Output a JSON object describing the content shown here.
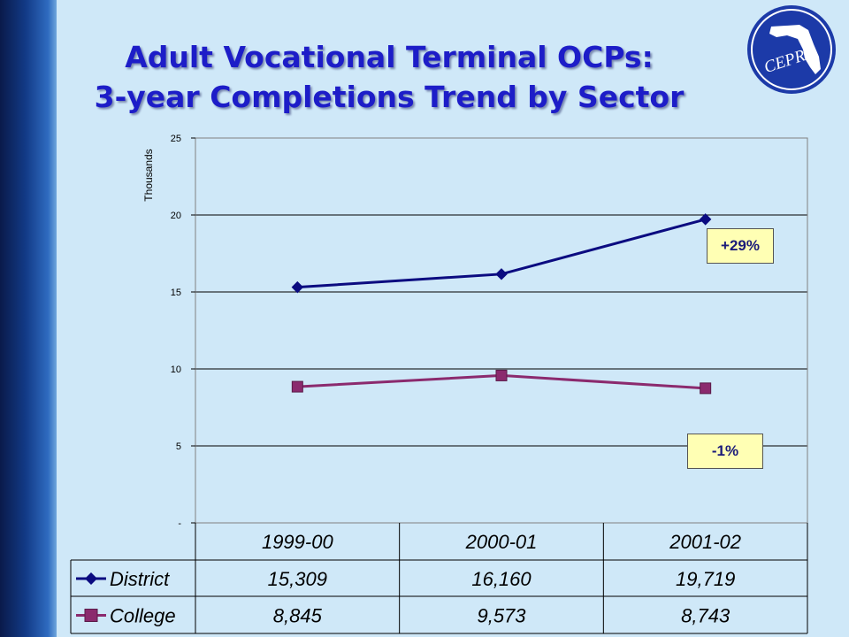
{
  "title": {
    "line1": "Adult Vocational Terminal OCPs:",
    "line2": "3-year Completions Trend by Sector"
  },
  "logo": {
    "text": "CEPRI",
    "icon": "florida-map-logo-icon"
  },
  "chart_data": {
    "type": "line",
    "ylabel": "Thousands",
    "ylim": [
      0,
      25
    ],
    "yticks": [
      {
        "value": 0,
        "label": "-"
      },
      {
        "value": 5,
        "label": "5"
      },
      {
        "value": 10,
        "label": "10"
      },
      {
        "value": 15,
        "label": "15"
      },
      {
        "value": 20,
        "label": "20"
      },
      {
        "value": 25,
        "label": "25"
      }
    ],
    "categories": [
      "1999-00",
      "2000-01",
      "2001-02"
    ],
    "grid": true,
    "legend": "data-table",
    "series": [
      {
        "name": "District",
        "values": [
          15.309,
          16.16,
          19.719
        ],
        "table_values": [
          "15,309",
          "16,160",
          "19,719"
        ],
        "color": "#0b0b80",
        "marker": "diamond"
      },
      {
        "name": "College",
        "values": [
          8.845,
          9.573,
          8.743
        ],
        "table_values": [
          "8,845",
          "9,573",
          "8,743"
        ],
        "color": "#8b2a6e",
        "marker": "square"
      }
    ],
    "annotations": [
      {
        "text": "+29%",
        "series": "District"
      },
      {
        "text": "-1%",
        "series": "College"
      }
    ]
  }
}
